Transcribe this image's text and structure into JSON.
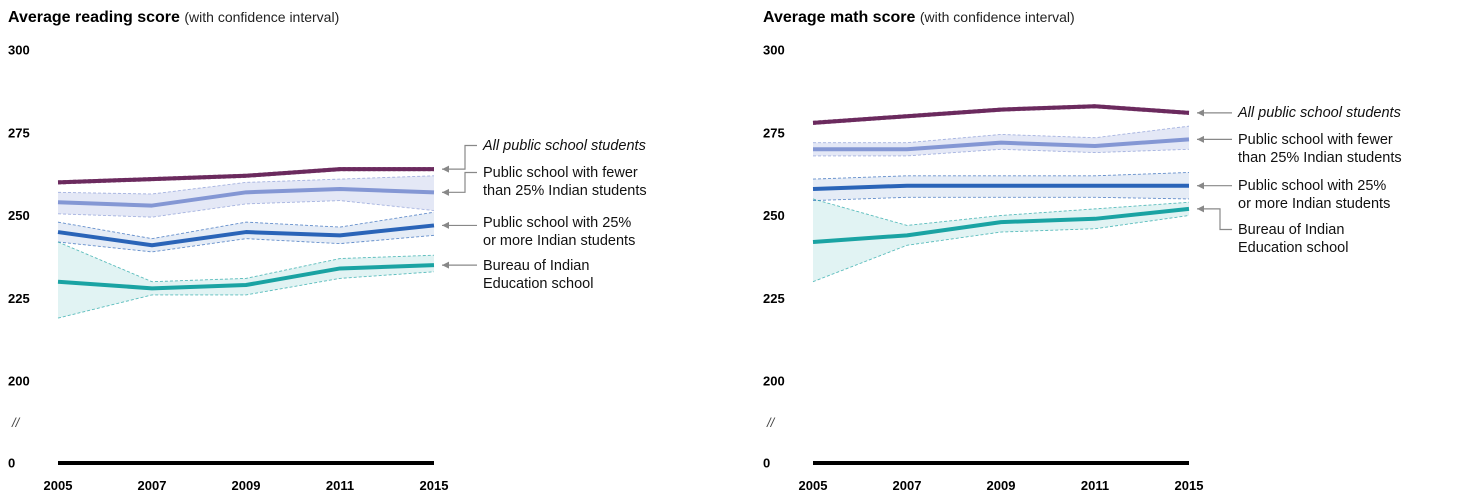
{
  "chart_data": [
    {
      "type": "line",
      "title": "Average reading score",
      "subtitle": "(with confidence interval)",
      "x": [
        "2005",
        "2007",
        "2009",
        "2011",
        "2015"
      ],
      "yticks": [
        "300",
        "275",
        "250",
        "225",
        "200",
        "0"
      ],
      "ylim": [
        200,
        300
      ],
      "axis_break": true,
      "axis_break_symbol": "//",
      "legend": "right",
      "series": [
        {
          "name": "All public school students",
          "italic": true,
          "color": "#6b2a5e",
          "values": [
            260,
            261,
            262,
            264,
            264
          ],
          "lower": [
            259.5,
            260.5,
            261.5,
            263.5,
            263.5
          ],
          "upper": [
            260.5,
            261.5,
            262.5,
            264.5,
            264.5
          ]
        },
        {
          "name": "Public school with fewer than 25% Indian students",
          "italic": false,
          "color": "#8497d4",
          "values": [
            254,
            253,
            257,
            258,
            257
          ],
          "lower": [
            250.5,
            249.5,
            253.5,
            254.5,
            251.5
          ],
          "upper": [
            257,
            256.5,
            260,
            261,
            262
          ]
        },
        {
          "name": "Public school with 25% or more Indian students",
          "italic": false,
          "color": "#2a64b8",
          "values": [
            245,
            241,
            245,
            244,
            247
          ],
          "lower": [
            242,
            239,
            243,
            241.5,
            244
          ],
          "upper": [
            248,
            243,
            248,
            246.5,
            251
          ]
        },
        {
          "name": "Bureau of Indian Education school",
          "italic": false,
          "color": "#1aa3a3",
          "values": [
            230,
            228,
            229,
            234,
            235
          ],
          "lower": [
            219,
            226,
            226,
            231,
            233
          ],
          "upper": [
            242,
            230,
            231,
            237,
            238
          ]
        }
      ],
      "labels": [
        {
          "lines": [
            "All public school students"
          ]
        },
        {
          "lines": [
            "Public school with fewer",
            "than 25% Indian students"
          ]
        },
        {
          "lines": [
            "Public school with 25%",
            "or more Indian students"
          ]
        },
        {
          "lines": [
            "Bureau of Indian",
            "Education school"
          ]
        }
      ]
    },
    {
      "type": "line",
      "title": "Average math score",
      "subtitle": "(with confidence interval)",
      "x": [
        "2005",
        "2007",
        "2009",
        "2011",
        "2015"
      ],
      "yticks": [
        "300",
        "275",
        "250",
        "225",
        "200",
        "0"
      ],
      "ylim": [
        200,
        300
      ],
      "axis_break": true,
      "axis_break_symbol": "//",
      "legend": "right",
      "series": [
        {
          "name": "All public school students",
          "italic": true,
          "color": "#6b2a5e",
          "values": [
            278,
            280,
            282,
            283,
            281
          ],
          "lower": [
            277.5,
            279.5,
            281.5,
            282.5,
            280.5
          ],
          "upper": [
            278.5,
            280.5,
            282.5,
            283.5,
            281.5
          ]
        },
        {
          "name": "Public school with fewer than 25% Indian students",
          "italic": false,
          "color": "#8497d4",
          "values": [
            270,
            270,
            272,
            271,
            273
          ],
          "lower": [
            268,
            268,
            270,
            269,
            270
          ],
          "upper": [
            272,
            272,
            274.5,
            273.5,
            277
          ]
        },
        {
          "name": "Public school with 25% or more Indian students",
          "italic": false,
          "color": "#2a64b8",
          "values": [
            258,
            259,
            259,
            259,
            259
          ],
          "lower": [
            254.5,
            255.5,
            255.5,
            255.5,
            255
          ],
          "upper": [
            261,
            262,
            262,
            262,
            263
          ]
        },
        {
          "name": "Bureau of Indian Education school",
          "italic": false,
          "color": "#1aa3a3",
          "values": [
            242,
            244,
            248,
            249,
            252
          ],
          "lower": [
            230,
            241,
            245,
            246,
            250
          ],
          "upper": [
            255,
            247,
            250,
            252,
            254
          ]
        }
      ],
      "labels": [
        {
          "lines": [
            "All public school students"
          ]
        },
        {
          "lines": [
            "Public school with fewer",
            "than 25% Indian students"
          ]
        },
        {
          "lines": [
            "Public school with 25%",
            "or more Indian students"
          ]
        },
        {
          "lines": [
            "Bureau of Indian",
            "Education school"
          ]
        }
      ]
    }
  ]
}
